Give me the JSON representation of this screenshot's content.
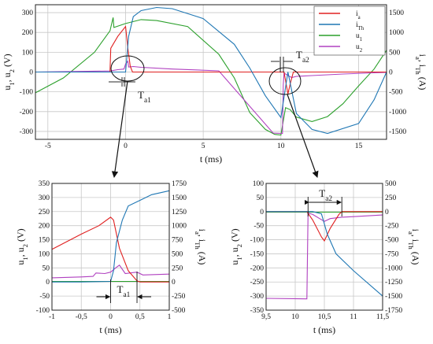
{
  "chart_data": [
    {
      "type": "line",
      "xlabel": "t (ms)",
      "ylabel_left": "u1, u2 (V)",
      "ylabel_right": "ia, iTh (A)",
      "xlim": [
        -5.8,
        16.8
      ],
      "ylim_left": [
        -340,
        340
      ],
      "ylim_right": [
        -1700,
        1700
      ],
      "x_ticks": [
        "-5",
        "0",
        "5",
        "10",
        "15"
      ],
      "y_ticks_left": [
        "-300",
        "-200",
        "-100",
        "0",
        "100",
        "200",
        "300"
      ],
      "y_ticks_right": [
        "-1500",
        "-1000",
        "-500",
        "0",
        "500",
        "1000",
        "1500"
      ],
      "grid": true,
      "legend_position": "top-right",
      "legend": [
        "ia",
        "iTh",
        "u1",
        "u2"
      ],
      "annotations": [
        "Ta1",
        "Ta2"
      ],
      "series": [
        {
          "name": "u1",
          "axis": "left",
          "color": "#2ca02c",
          "x": [
            -5.8,
            -4,
            -2,
            -1,
            -0.8,
            -0.75,
            0,
            1,
            2,
            4,
            6,
            7,
            8,
            9,
            9.6,
            10,
            10.3,
            10.6,
            11,
            12,
            13,
            14,
            15,
            16,
            16.8
          ],
          "y": [
            -105,
            -30,
            100,
            208,
            275,
            225,
            245,
            265,
            260,
            230,
            90,
            -30,
            -205,
            -290,
            -315,
            -318,
            -180,
            -190,
            -228,
            -250,
            -225,
            -160,
            -70,
            15,
            110
          ]
        },
        {
          "name": "u2",
          "axis": "left",
          "color": "#b040c0",
          "x": [
            -5.8,
            -1,
            -0.5,
            -0.1,
            0,
            0.15,
            0.2,
            0.5,
            1,
            3,
            6,
            9.5,
            10.1,
            10.15,
            10.2,
            10.5,
            10.7,
            11,
            12,
            14,
            16,
            16.8
          ],
          "y": [
            0,
            5,
            12,
            15,
            40,
            55,
            25,
            28,
            24,
            15,
            6,
            -308,
            -310,
            -65,
            -5,
            -20,
            -28,
            -22,
            -18,
            -10,
            -4,
            -2
          ]
        },
        {
          "name": "ia",
          "axis": "right",
          "color": "#e02020",
          "x": [
            -5.8,
            -1,
            -0.95,
            -0.5,
            0,
            0.15,
            0.3,
            0.45,
            1,
            10,
            10.2,
            10.45,
            10.6,
            10.8,
            16.8
          ],
          "y": [
            0,
            0,
            600,
            900,
            1150,
            600,
            150,
            0,
            0,
            0,
            0,
            -550,
            -300,
            0,
            0
          ]
        },
        {
          "name": "iTh",
          "axis": "right",
          "color": "#1f77b4",
          "x": [
            -5.8,
            0,
            0.2,
            0.5,
            1,
            2,
            3,
            5,
            7,
            8,
            9,
            10,
            10.45,
            11,
            12,
            13,
            15,
            16,
            16.8
          ],
          "y": [
            0,
            0,
            900,
            1400,
            1550,
            1630,
            1600,
            1350,
            700,
            100,
            -600,
            -1150,
            0,
            -1050,
            -1450,
            -1550,
            -1300,
            -700,
            0
          ]
        }
      ]
    },
    {
      "type": "line",
      "xlabel": "t (ms)",
      "ylabel_left": "u1, u2 (V)",
      "ylabel_right": "ia, iTh (A)",
      "xlim": [
        -1,
        1
      ],
      "ylim_left": [
        -100,
        350
      ],
      "ylim_right": [
        -500,
        1750
      ],
      "x_ticks": [
        "-1",
        "-0,5",
        "0",
        "0,5",
        "1"
      ],
      "y_ticks_left": [
        "-100",
        "-50",
        "0",
        "50",
        "100",
        "150",
        "200",
        "250",
        "300",
        "350"
      ],
      "y_ticks_right": [
        "-500",
        "-250",
        "0",
        "250",
        "500",
        "750",
        "1000",
        "1250",
        "1500",
        "1750"
      ],
      "grid": true,
      "annotations": [
        "Ta1"
      ],
      "series": [
        {
          "name": "u1",
          "axis": "left",
          "color": "#2ca02c",
          "x": [
            -1,
            1
          ],
          "y": [
            2,
            2
          ]
        },
        {
          "name": "u2",
          "axis": "left",
          "color": "#b040c0",
          "x": [
            -1,
            -0.5,
            -0.3,
            -0.25,
            -0.1,
            0,
            0.1,
            0.15,
            0.25,
            0.45,
            0.55,
            1
          ],
          "y": [
            15,
            18,
            20,
            32,
            30,
            35,
            52,
            60,
            30,
            35,
            25,
            28
          ]
        },
        {
          "name": "ia",
          "axis": "right",
          "color": "#e02020",
          "x": [
            -1,
            -0.5,
            -0.2,
            0,
            0.05,
            0.15,
            0.3,
            0.4,
            0.45,
            0.5,
            1
          ],
          "y": [
            580,
            850,
            1000,
            1150,
            1100,
            600,
            200,
            80,
            20,
            0,
            0
          ]
        },
        {
          "name": "iTh",
          "axis": "right",
          "color": "#1f77b4",
          "x": [
            -1,
            -0.5,
            0,
            0.05,
            0.1,
            0.2,
            0.3,
            0.5,
            0.7,
            1
          ],
          "y": [
            0,
            0,
            10,
            200,
            700,
            1100,
            1350,
            1450,
            1550,
            1620
          ]
        }
      ]
    },
    {
      "type": "line",
      "xlabel": "t (ms)",
      "ylabel_left": "u1, u2 (V)",
      "ylabel_right": "ia, iTh (A)",
      "xlim": [
        9.5,
        11.5
      ],
      "ylim_left": [
        -350,
        100
      ],
      "ylim_right": [
        -1750,
        500
      ],
      "x_ticks": [
        "9,5",
        "10",
        "10,5",
        "11",
        "11,5"
      ],
      "y_ticks_left": [
        "-350",
        "-300",
        "-250",
        "-200",
        "-150",
        "-100",
        "-50",
        "0",
        "50",
        "100"
      ],
      "y_ticks_right": [
        "-1750",
        "-1500",
        "-1250",
        "-1000",
        "-750",
        "-500",
        "-250",
        "0",
        "250",
        "500"
      ],
      "grid": true,
      "annotations": [
        "Ta2"
      ],
      "series": [
        {
          "name": "u1",
          "axis": "left",
          "color": "#2ca02c",
          "x": [
            9.5,
            11.5
          ],
          "y": [
            -2,
            -2
          ]
        },
        {
          "name": "u2",
          "axis": "left",
          "color": "#b040c0",
          "x": [
            9.5,
            10.2,
            10.22,
            10.3,
            10.5,
            10.6,
            10.8,
            11,
            11.5
          ],
          "y": [
            -308,
            -310,
            -5,
            -10,
            -35,
            -25,
            -20,
            -18,
            -12
          ]
        },
        {
          "name": "ia",
          "axis": "right",
          "color": "#e02020",
          "x": [
            9.5,
            10.2,
            10.3,
            10.45,
            10.5,
            10.6,
            10.75,
            10.8,
            11.5
          ],
          "y": [
            0,
            0,
            -150,
            -450,
            -520,
            -300,
            -50,
            0,
            0
          ]
        },
        {
          "name": "iTh",
          "axis": "right",
          "color": "#1f77b4",
          "x": [
            9.5,
            10.3,
            10.45,
            10.55,
            10.7,
            11,
            11.5
          ],
          "y": [
            0,
            0,
            -40,
            -400,
            -750,
            -1050,
            -1500
          ]
        }
      ]
    }
  ],
  "legend_labels": {
    "ia": {
      "base": "i",
      "sub": "a"
    },
    "iTh": {
      "base": "i",
      "sub": "Th"
    },
    "u1": {
      "base": "u",
      "sub": "1"
    },
    "u2": {
      "base": "u",
      "sub": "2"
    }
  },
  "axis_text": {
    "left_prefix_u": "u",
    "left_sub_1": "1",
    "left_sep": ", u",
    "left_sub_2": "2",
    "left_unit": " (V)",
    "right_prefix_i": "i",
    "right_sub_a": "a",
    "right_sep": ", i",
    "right_sub_th": "Th",
    "right_unit": " (A)",
    "x_label": "t (ms)"
  },
  "annotation_text": {
    "ta1_base": "T",
    "ta1_sub": "a1",
    "ta2_base": "T",
    "ta2_sub": "a2"
  }
}
